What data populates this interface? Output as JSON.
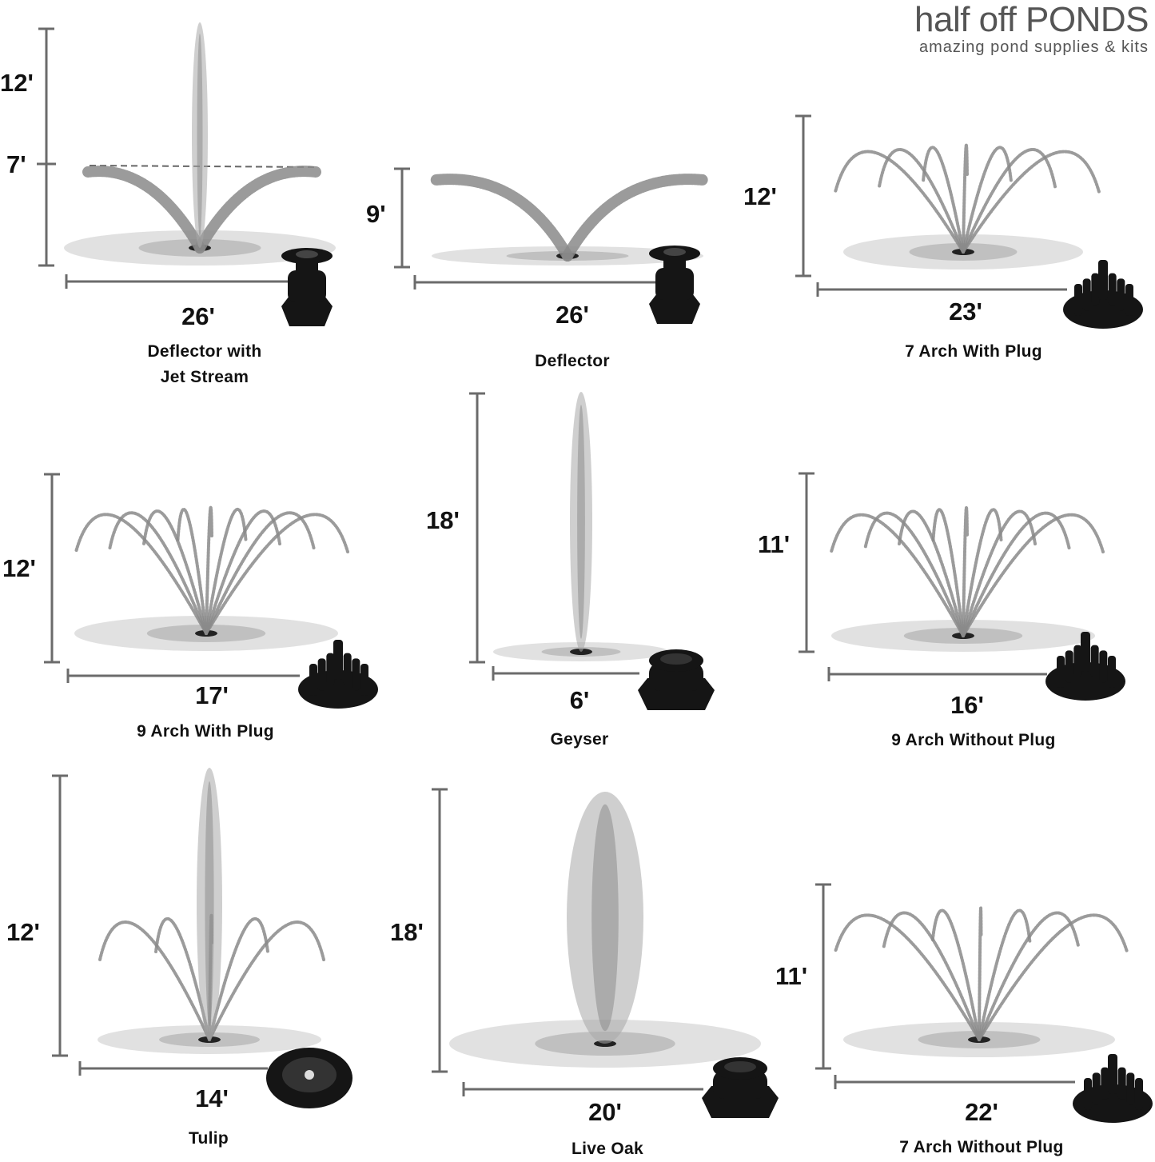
{
  "logo": {
    "title": "half off PONDS",
    "tagline": "amazing pond supplies & kits"
  },
  "nozzles": [
    {
      "name": "Deflector with\nJet Stream",
      "height": "12'",
      "secondary_height": "7'",
      "width": "26'",
      "spray": "deflector-jet"
    },
    {
      "name": "Deflector",
      "height": "9'",
      "width": "26'",
      "spray": "deflector"
    },
    {
      "name": "7 Arch With Plug",
      "height": "12'",
      "width": "23'",
      "spray": "arch-7"
    },
    {
      "name": "9 Arch With Plug",
      "height": "12'",
      "width": "17'",
      "spray": "arch-9"
    },
    {
      "name": "Geyser",
      "height": "18'",
      "width": "6'",
      "spray": "geyser"
    },
    {
      "name": "9 Arch Without Plug",
      "height": "11'",
      "width": "16'",
      "spray": "arch-9"
    },
    {
      "name": "Tulip",
      "height": "12'",
      "width": "14'",
      "spray": "tulip"
    },
    {
      "name": "Live Oak",
      "height": "18'",
      "width": "20'",
      "spray": "geyser"
    },
    {
      "name": "7 Arch Without Plug",
      "height": "11'",
      "width": "22'",
      "spray": "arch-7"
    }
  ],
  "colors": {
    "measure_line": "#6b6b6b",
    "spray": "#8a8a8a",
    "nozzle": "#151515"
  }
}
